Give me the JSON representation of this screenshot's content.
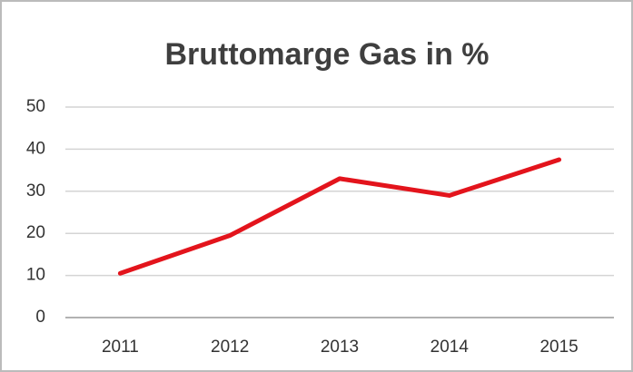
{
  "chart_data": {
    "type": "line",
    "title": "Bruttomarge Gas in %",
    "categories": [
      "2011",
      "2012",
      "2013",
      "2014",
      "2015"
    ],
    "series": [
      {
        "name": "Bruttomarge Gas",
        "color": "#e3141c",
        "values": [
          10.5,
          19.5,
          33,
          29,
          37.5
        ]
      }
    ],
    "ylim": [
      0,
      50
    ],
    "yticks": [
      0,
      10,
      20,
      30,
      40,
      50
    ],
    "grid": true
  }
}
